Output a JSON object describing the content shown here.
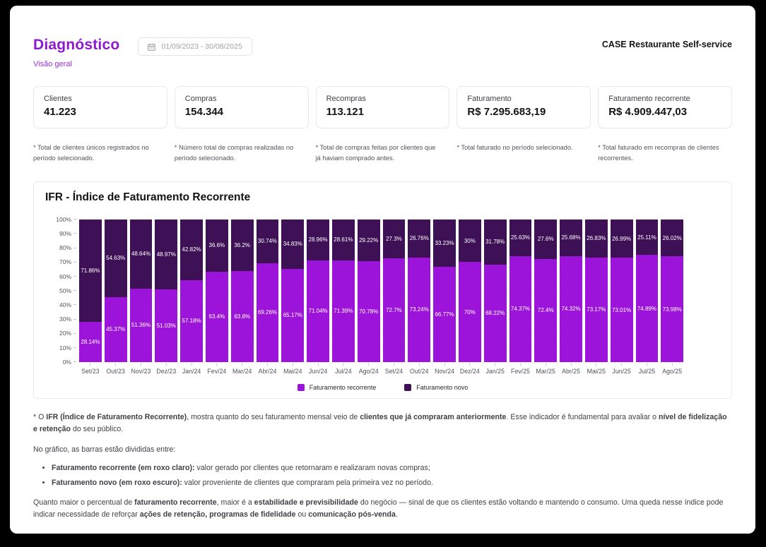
{
  "page": {
    "title": "Diagnóstico",
    "subtitle": "Visão geral",
    "date_range": "01/09/2023 - 30/08/2025",
    "account": "CASE Restaurante Self-service"
  },
  "kpis": [
    {
      "label": "Clientes",
      "value": "41.223",
      "note": "* Total de clientes únicos registrados no período selecionado."
    },
    {
      "label": "Compras",
      "value": "154.344",
      "note": "* Número total de compras realizadas no período selecionado."
    },
    {
      "label": "Recompras",
      "value": "113.121",
      "note": "* Total de compras feitas por clientes que já haviam comprado antes."
    },
    {
      "label": "Faturamento",
      "value": "R$ 7.295.683,19",
      "note": "* Total faturado no período selecionado."
    },
    {
      "label": "Faturamento recorrente",
      "value": "R$ 4.909.447,03",
      "note": "* Total faturado em recompras de clientes recorrentes."
    }
  ],
  "chart_data": {
    "type": "bar",
    "stacked": true,
    "title": "IFR - Índice de Faturamento Recorrente",
    "categories": [
      "Set/23",
      "Out/23",
      "Nov/23",
      "Dez/23",
      "Jan/24",
      "Fev/24",
      "Mar/24",
      "Abr/24",
      "Mai/24",
      "Jun/24",
      "Jul/24",
      "Ago/24",
      "Set/24",
      "Out/24",
      "Nov/24",
      "Dez/24",
      "Jan/25",
      "Fev/25",
      "Mar/25",
      "Abr/25",
      "Mai/25",
      "Jun/25",
      "Jul/25",
      "Ago/25"
    ],
    "series": [
      {
        "name": "Faturamento recorrente",
        "color": "#9c13da",
        "values": [
          28.14,
          45.37,
          51.36,
          51.03,
          57.18,
          63.4,
          63.8,
          69.26,
          65.17,
          71.04,
          71.39,
          70.78,
          72.7,
          73.24,
          66.77,
          70,
          68.22,
          74.37,
          72.4,
          74.32,
          73.17,
          73.01,
          74.89,
          73.98
        ]
      },
      {
        "name": "Faturamento novo",
        "color": "#3e1156",
        "values": [
          71.86,
          54.63,
          48.64,
          48.97,
          42.82,
          36.6,
          36.2,
          30.74,
          34.83,
          28.96,
          28.61,
          29.22,
          27.3,
          26.76,
          33.23,
          30,
          31.78,
          25.63,
          27.6,
          25.68,
          26.83,
          26.99,
          25.11,
          26.02
        ]
      }
    ],
    "value_suffix": "%",
    "ylim": [
      0,
      100
    ],
    "yticks": [
      "100%",
      "90%",
      "80%",
      "70%",
      "60%",
      "50%",
      "40%",
      "30%",
      "20%",
      "10%",
      "0%"
    ],
    "grid": true,
    "legend_position": "bottom"
  },
  "description": {
    "intro": [
      {
        "t": "* O ",
        "b": false
      },
      {
        "t": "IFR (Índice de Faturamento Recorrente)",
        "b": true
      },
      {
        "t": ", mostra quanto do seu faturamento mensal veio de ",
        "b": false
      },
      {
        "t": "clientes que já compraram anteriormente",
        "b": true
      },
      {
        "t": ". Esse indicador é fundamental para avaliar o ",
        "b": false
      },
      {
        "t": "nível de fidelização e retenção",
        "b": true
      },
      {
        "t": " do seu público.",
        "b": false
      }
    ],
    "lead": [
      {
        "t": "No gráfico, as barras estão divididas entre:",
        "b": false
      }
    ],
    "bullets": [
      [
        {
          "t": "Faturamento recorrente (em roxo claro):",
          "b": true
        },
        {
          "t": " valor gerado por clientes que retornaram e realizaram novas compras;",
          "b": false
        }
      ],
      [
        {
          "t": "Faturamento novo (em roxo escuro):",
          "b": true
        },
        {
          "t": " valor proveniente de clientes que compraram pela primeira vez no período.",
          "b": false
        }
      ]
    ],
    "outro": [
      {
        "t": "Quanto maior o percentual de ",
        "b": false
      },
      {
        "t": "faturamento recorrente",
        "b": true
      },
      {
        "t": ", maior é a ",
        "b": false
      },
      {
        "t": "estabilidade e previsibilidade",
        "b": true
      },
      {
        "t": " do negócio — sinal de que os clientes estão voltando e mantendo o consumo. Uma queda nesse índice pode indicar necessidade de reforçar ",
        "b": false
      },
      {
        "t": "ações de retenção, programas de fidelidade",
        "b": true
      },
      {
        "t": " ou ",
        "b": false
      },
      {
        "t": "comunicação pós-venda",
        "b": true
      },
      {
        "t": ".",
        "b": false
      }
    ]
  }
}
